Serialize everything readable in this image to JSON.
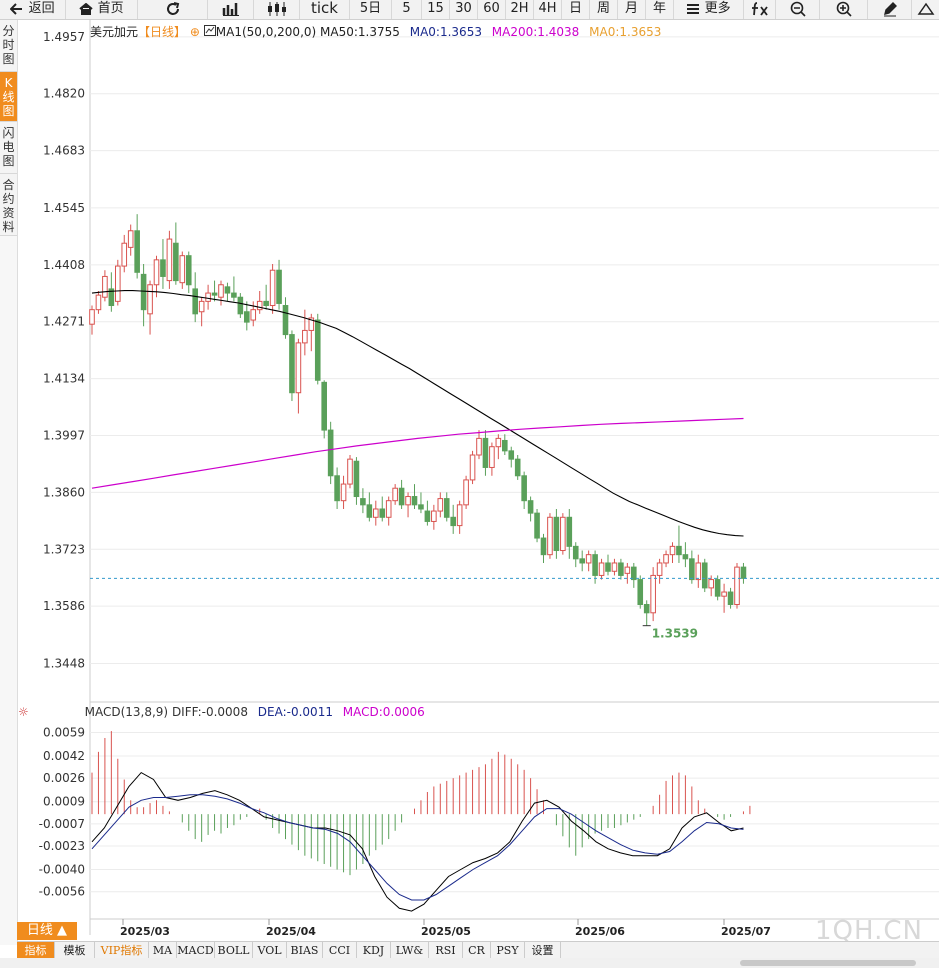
{
  "toolbar": {
    "back": "返回",
    "home": "首页",
    "tick": "tick",
    "periods": [
      "5日",
      "5",
      "15",
      "30",
      "60",
      "2H",
      "4H",
      "日",
      "周",
      "月",
      "年"
    ],
    "more": "更多"
  },
  "left_tabs": [
    {
      "label": "分时图",
      "active": false
    },
    {
      "label": "K线图",
      "active": true
    },
    {
      "label": "闪电图",
      "active": false
    },
    {
      "label": "合约资料",
      "active": false
    }
  ],
  "legend": {
    "title": "美元加元",
    "period": "【日线】",
    "ma_main": "MA1(50,0,200,0)",
    "ma50": "MA50:1.3755",
    "ma0a": "MA0:1.3653",
    "ma200": "MA200:1.4038",
    "ma0b": "MA0:1.3653"
  },
  "macd_legend": {
    "name": "MACD(13,8,9)",
    "diff": "DIFF:-0.0008",
    "dea": "DEA:-0.0011",
    "macd": "MACD:0.0006"
  },
  "colors": {
    "up": "#d9534f",
    "down": "#5aa05a",
    "ma50": "#000000",
    "ma200": "#cc00cc",
    "dea": "#1a2a8c",
    "last_price_line": "#3399cc",
    "accent": "#f08c1e"
  },
  "chart_data": [
    {
      "type": "candlestick",
      "title": "美元加元",
      "yticks": [
        "1.4957",
        "1.4820",
        "1.4683",
        "1.4545",
        "1.4408",
        "1.4271",
        "1.4134",
        "1.3997",
        "1.3860",
        "1.3723",
        "1.3586",
        "1.3448"
      ],
      "ylim": [
        1.336,
        1.5
      ],
      "xticks": [
        "2025/03",
        "2025/04",
        "2025/05",
        "2025/06",
        "2025/07"
      ],
      "last_price": 1.3653,
      "min_label": "1.3539",
      "ohlc_note": "open, high, low, close per daily bar",
      "candles": [
        [
          1.4265,
          1.431,
          1.424,
          1.43
        ],
        [
          1.43,
          1.4345,
          1.429,
          1.4335
        ],
        [
          1.433,
          1.4395,
          1.432,
          1.438
        ],
        [
          1.435,
          1.439,
          1.4295,
          1.431
        ],
        [
          1.432,
          1.442,
          1.431,
          1.4405
        ],
        [
          1.4405,
          1.448,
          1.439,
          1.446
        ],
        [
          1.445,
          1.4505,
          1.443,
          1.449
        ],
        [
          1.449,
          1.453,
          1.4375,
          1.439
        ],
        [
          1.4385,
          1.441,
          1.426,
          1.43
        ],
        [
          1.429,
          1.437,
          1.424,
          1.436
        ],
        [
          1.436,
          1.443,
          1.433,
          1.442
        ],
        [
          1.442,
          1.447,
          1.435,
          1.438
        ],
        [
          1.437,
          1.449,
          1.435,
          1.447
        ],
        [
          1.446,
          1.451,
          1.436,
          1.437
        ],
        [
          1.4365,
          1.444,
          1.435,
          1.443
        ],
        [
          1.443,
          1.444,
          1.434,
          1.436
        ],
        [
          1.435,
          1.439,
          1.427,
          1.429
        ],
        [
          1.4295,
          1.433,
          1.426,
          1.432
        ],
        [
          1.432,
          1.436,
          1.43,
          1.434
        ],
        [
          1.434,
          1.437,
          1.432,
          1.4335
        ],
        [
          1.433,
          1.437,
          1.431,
          1.436
        ],
        [
          1.4355,
          1.4365,
          1.432,
          1.434
        ],
        [
          1.434,
          1.438,
          1.432,
          1.433
        ],
        [
          1.433,
          1.434,
          1.428,
          1.429
        ],
        [
          1.4295,
          1.432,
          1.425,
          1.427
        ],
        [
          1.4275,
          1.432,
          1.426,
          1.43
        ],
        [
          1.43,
          1.4345,
          1.429,
          1.432
        ],
        [
          1.432,
          1.436,
          1.43,
          1.431
        ],
        [
          1.431,
          1.441,
          1.429,
          1.4395
        ],
        [
          1.4395,
          1.442,
          1.43,
          1.4315
        ],
        [
          1.431,
          1.433,
          1.423,
          1.424
        ],
        [
          1.424,
          1.425,
          1.408,
          1.41
        ],
        [
          1.41,
          1.423,
          1.405,
          1.422
        ],
        [
          1.422,
          1.43,
          1.419,
          1.425
        ],
        [
          1.425,
          1.429,
          1.42,
          1.428
        ],
        [
          1.4275,
          1.429,
          1.412,
          1.413
        ],
        [
          1.4125,
          1.413,
          1.399,
          1.401
        ],
        [
          1.401,
          1.403,
          1.388,
          1.39
        ],
        [
          1.39,
          1.392,
          1.382,
          1.384
        ],
        [
          1.384,
          1.39,
          1.382,
          1.388
        ],
        [
          1.388,
          1.395,
          1.387,
          1.394
        ],
        [
          1.3935,
          1.3945,
          1.383,
          1.385
        ],
        [
          1.3845,
          1.387,
          1.381,
          1.383
        ],
        [
          1.383,
          1.386,
          1.379,
          1.38
        ],
        [
          1.38,
          1.384,
          1.378,
          1.382
        ],
        [
          1.382,
          1.385,
          1.379,
          1.38
        ],
        [
          1.38,
          1.385,
          1.378,
          1.384
        ],
        [
          1.384,
          1.388,
          1.383,
          1.387
        ],
        [
          1.387,
          1.389,
          1.382,
          1.383
        ],
        [
          1.383,
          1.386,
          1.38,
          1.385
        ],
        [
          1.385,
          1.388,
          1.382,
          1.383
        ],
        [
          1.383,
          1.386,
          1.381,
          1.382
        ],
        [
          1.3815,
          1.384,
          1.378,
          1.379
        ],
        [
          1.379,
          1.383,
          1.377,
          1.3815
        ],
        [
          1.3815,
          1.386,
          1.38,
          1.3845
        ],
        [
          1.3845,
          1.386,
          1.379,
          1.38
        ],
        [
          1.38,
          1.383,
          1.376,
          1.378
        ],
        [
          1.378,
          1.384,
          1.376,
          1.383
        ],
        [
          1.383,
          1.39,
          1.382,
          1.389
        ],
        [
          1.389,
          1.396,
          1.388,
          1.395
        ],
        [
          1.395,
          1.401,
          1.394,
          1.399
        ],
        [
          1.399,
          1.401,
          1.39,
          1.392
        ],
        [
          1.392,
          1.398,
          1.39,
          1.397
        ],
        [
          1.397,
          1.4,
          1.394,
          1.399
        ],
        [
          1.3985,
          1.4,
          1.395,
          1.396
        ],
        [
          1.396,
          1.397,
          1.392,
          1.394
        ],
        [
          1.394,
          1.395,
          1.389,
          1.39
        ],
        [
          1.39,
          1.391,
          1.382,
          1.384
        ],
        [
          1.384,
          1.385,
          1.379,
          1.381
        ],
        [
          1.381,
          1.382,
          1.374,
          1.375
        ],
        [
          1.375,
          1.376,
          1.369,
          1.371
        ],
        [
          1.371,
          1.381,
          1.37,
          1.38
        ],
        [
          1.38,
          1.382,
          1.37,
          1.372
        ],
        [
          1.372,
          1.381,
          1.371,
          1.38
        ],
        [
          1.38,
          1.382,
          1.37,
          1.373
        ],
        [
          1.373,
          1.374,
          1.368,
          1.37
        ],
        [
          1.37,
          1.372,
          1.367,
          1.369
        ],
        [
          1.369,
          1.372,
          1.367,
          1.371
        ],
        [
          1.371,
          1.372,
          1.364,
          1.366
        ],
        [
          1.366,
          1.37,
          1.365,
          1.369
        ],
        [
          1.369,
          1.371,
          1.366,
          1.367
        ],
        [
          1.367,
          1.37,
          1.366,
          1.369
        ],
        [
          1.369,
          1.37,
          1.365,
          1.366
        ],
        [
          1.3665,
          1.369,
          1.364,
          1.368
        ],
        [
          1.368,
          1.369,
          1.363,
          1.365
        ],
        [
          1.365,
          1.366,
          1.358,
          1.359
        ],
        [
          1.359,
          1.36,
          1.3539,
          1.357
        ],
        [
          1.357,
          1.368,
          1.355,
          1.366
        ],
        [
          1.366,
          1.37,
          1.364,
          1.369
        ],
        [
          1.369,
          1.372,
          1.368,
          1.371
        ],
        [
          1.371,
          1.374,
          1.369,
          1.373
        ],
        [
          1.373,
          1.378,
          1.369,
          1.371
        ],
        [
          1.371,
          1.374,
          1.368,
          1.37
        ],
        [
          1.37,
          1.372,
          1.364,
          1.365
        ],
        [
          1.365,
          1.371,
          1.363,
          1.369
        ],
        [
          1.369,
          1.37,
          1.362,
          1.363
        ],
        [
          1.363,
          1.366,
          1.361,
          1.365
        ],
        [
          1.365,
          1.366,
          1.36,
          1.361
        ],
        [
          1.361,
          1.364,
          1.357,
          1.362
        ],
        [
          1.362,
          1.363,
          1.358,
          1.359
        ],
        [
          1.359,
          1.369,
          1.358,
          1.368
        ],
        [
          1.368,
          1.369,
          1.364,
          1.3653
        ]
      ],
      "ma50": [
        1.434,
        1.4342,
        1.4344,
        1.4345,
        1.4346,
        1.4346,
        1.4345,
        1.4344,
        1.4343,
        1.4341,
        1.4339,
        1.4336,
        1.4334,
        1.4331,
        1.4328,
        1.4325,
        1.4322,
        1.4319,
        1.4316,
        1.4312,
        1.4308,
        1.4304,
        1.43,
        1.4296,
        1.4291,
        1.4286,
        1.4281,
        1.4275,
        1.4269,
        1.4262,
        1.4255,
        1.4245,
        1.4235,
        1.4224,
        1.4213,
        1.4202,
        1.4191,
        1.418,
        1.4169,
        1.4158,
        1.4146,
        1.4134,
        1.4122,
        1.411,
        1.4098,
        1.4086,
        1.4074,
        1.4062,
        1.405,
        1.4038,
        1.4026,
        1.4014,
        1.4002,
        1.399,
        1.3978,
        1.3966,
        1.3954,
        1.3942,
        1.393,
        1.3918,
        1.3906,
        1.3894,
        1.3882,
        1.387,
        1.3858,
        1.3848,
        1.3838,
        1.383,
        1.3822,
        1.3814,
        1.3806,
        1.3798,
        1.379,
        1.3783,
        1.3776,
        1.377,
        1.3765,
        1.3761,
        1.3758,
        1.3756,
        1.3755
      ],
      "ma200": [
        1.387,
        1.3878,
        1.3886,
        1.3894,
        1.3902,
        1.391,
        1.3918,
        1.3926,
        1.3934,
        1.3942,
        1.395,
        1.3958,
        1.3965,
        1.3972,
        1.3978,
        1.3984,
        1.399,
        1.3995,
        1.4,
        1.4004,
        1.4008,
        1.4012,
        1.4015,
        1.4018,
        1.4021,
        1.4024,
        1.4026,
        1.4028,
        1.403,
        1.4032,
        1.4034,
        1.4036,
        1.4038
      ],
      "hist_offset": 0
    },
    {
      "type": "macd",
      "title": "MACD(13,8,9)",
      "yticks": [
        "0.0059",
        "0.0042",
        "0.0026",
        "0.0009",
        "-0.0007",
        "-0.0023",
        "-0.0040",
        "-0.0056"
      ],
      "ylim": [
        -0.0075,
        0.0068
      ],
      "diff": [
        -0.002,
        -0.001,
        0.0005,
        0.002,
        0.003,
        0.0025,
        0.0012,
        0.001,
        0.0012,
        0.0015,
        0.0017,
        0.0014,
        0.001,
        0.0004,
        -0.0002,
        -0.0004,
        -0.0006,
        -0.0008,
        -0.001,
        -0.001,
        -0.0012,
        -0.0015,
        -0.0025,
        -0.0045,
        -0.006,
        -0.0068,
        -0.007,
        -0.0065,
        -0.0055,
        -0.0045,
        -0.004,
        -0.0035,
        -0.0032,
        -0.0028,
        -0.002,
        -0.0005,
        0.0008,
        0.001,
        0.0005,
        -0.0005,
        -0.0012,
        -0.002,
        -0.0025,
        -0.0028,
        -0.003,
        -0.003,
        -0.003,
        -0.0025,
        -0.001,
        -0.0002,
        0.0001,
        -0.0006,
        -0.0012,
        -0.001
      ],
      "dea": [
        -0.0025,
        -0.0015,
        -0.0005,
        0.0005,
        0.001,
        0.0012,
        0.0012,
        0.0013,
        0.0014,
        0.0014,
        0.0013,
        0.0011,
        0.0008,
        0.0004,
        0.0001,
        -0.0003,
        -0.0006,
        -0.0008,
        -0.001,
        -0.0011,
        -0.0014,
        -0.002,
        -0.003,
        -0.004,
        -0.005,
        -0.0058,
        -0.0062,
        -0.0062,
        -0.0058,
        -0.0052,
        -0.0046,
        -0.004,
        -0.0035,
        -0.003,
        -0.0022,
        -0.0012,
        -0.0002,
        0.0004,
        0.0004,
        0.0,
        -0.0006,
        -0.0012,
        -0.0017,
        -0.0022,
        -0.0026,
        -0.0028,
        -0.0029,
        -0.0027,
        -0.002,
        -0.0012,
        -0.0006,
        -0.0007,
        -0.001,
        -0.0011
      ],
      "hist": [
        0.003,
        0.0045,
        0.0055,
        0.006,
        0.004,
        0.0025,
        0.001,
        0.0005,
        0.0005,
        0.0008,
        0.001,
        0.0006,
        0.0002,
        0.0,
        -0.0006,
        -0.0012,
        -0.0018,
        -0.002,
        -0.0015,
        -0.0012,
        -0.0014,
        -0.001,
        -0.0008,
        -0.0004,
        -0.0002,
        0.0,
        0.0004,
        -0.0004,
        -0.001,
        -0.0014,
        -0.0018,
        -0.0022,
        -0.0026,
        -0.003,
        -0.0032,
        -0.0034,
        -0.0036,
        -0.0038,
        -0.004,
        -0.0042,
        -0.0044,
        -0.004,
        -0.0036,
        -0.003,
        -0.0026,
        -0.0022,
        -0.0018,
        -0.0012,
        -0.0006,
        0.0,
        0.0004,
        0.001,
        0.0016,
        0.002,
        0.0022,
        0.0024,
        0.0026,
        0.0028,
        0.003,
        0.0032,
        0.0034,
        0.0036,
        0.004,
        0.0045,
        0.0043,
        0.004,
        0.0036,
        0.0032,
        0.0026,
        0.0018,
        0.001,
        0.0,
        -0.0008,
        -0.0016,
        -0.0024,
        -0.003,
        -0.0024,
        -0.0018,
        -0.0014,
        -0.0012,
        -0.001,
        -0.001,
        -0.0008,
        -0.0006,
        -0.0004,
        -0.0002,
        0.0,
        0.0006,
        0.0014,
        0.0024,
        0.0028,
        0.003,
        0.0028,
        0.002,
        0.001,
        0.0004,
        0.0,
        -0.0002,
        -0.0004,
        -0.0002,
        0.0,
        0.0002,
        0.0006
      ]
    }
  ],
  "bottom_tabs": [
    {
      "label": "指标",
      "active": true,
      "vip": false
    },
    {
      "label": "模板",
      "active": false,
      "vip": false
    },
    {
      "label": "VIP指标",
      "active": false,
      "vip": true
    },
    {
      "label": "MA",
      "active": false,
      "vip": false
    },
    {
      "label": "MACD",
      "active": false,
      "vip": false
    },
    {
      "label": "BOLL",
      "active": false,
      "vip": false
    },
    {
      "label": "VOL",
      "active": false,
      "vip": false
    },
    {
      "label": "BIAS",
      "active": false,
      "vip": false
    },
    {
      "label": "CCI",
      "active": false,
      "vip": false
    },
    {
      "label": "KDJ",
      "active": false,
      "vip": false
    },
    {
      "label": "LW&",
      "active": false,
      "vip": false
    },
    {
      "label": "RSI",
      "active": false,
      "vip": false
    },
    {
      "label": "CR",
      "active": false,
      "vip": false
    },
    {
      "label": "PSY",
      "active": false,
      "vip": false
    },
    {
      "label": "设置",
      "active": false,
      "vip": false
    }
  ],
  "day_button": "日线 ▲",
  "watermark": "1QH.CN"
}
